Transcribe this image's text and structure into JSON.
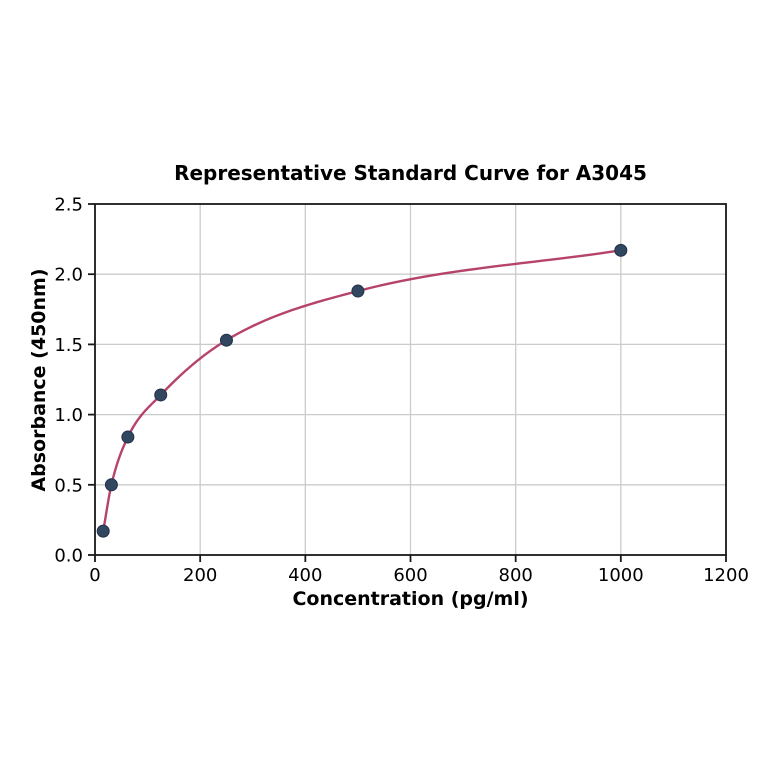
{
  "chart_data": {
    "type": "scatter",
    "title": "Representative Standard Curve for A3045",
    "xlabel": "Concentration (pg/ml)",
    "ylabel": "Absorbance (450nm)",
    "x": [
      15.6,
      31.2,
      62.5,
      125,
      250,
      500,
      1000
    ],
    "y": [
      0.17,
      0.5,
      0.84,
      1.14,
      1.53,
      1.88,
      2.17
    ],
    "curve_style": "smooth fit through points",
    "xlim": [
      0,
      1200
    ],
    "ylim": [
      0,
      2.5
    ],
    "xticks": [
      0,
      200,
      400,
      600,
      800,
      1000,
      1200
    ],
    "xtick_labels": [
      "0",
      "200",
      "400",
      "600",
      "800",
      "1000",
      "1200"
    ],
    "yticks": [
      0,
      0.5,
      1,
      1.5,
      2,
      2.5
    ],
    "ytick_labels": [
      "0.0",
      "0.5",
      "1.0",
      "1.5",
      "2.0",
      "2.5"
    ],
    "grid": true,
    "legend": "none",
    "colors": {
      "curve": "#b6436b",
      "marker_fill": "#31465f",
      "marker_edge": "#22304a",
      "grid": "#cbcbcb",
      "axis": "#1a1a1a",
      "text": "#000000",
      "background": "#ffffff"
    }
  }
}
